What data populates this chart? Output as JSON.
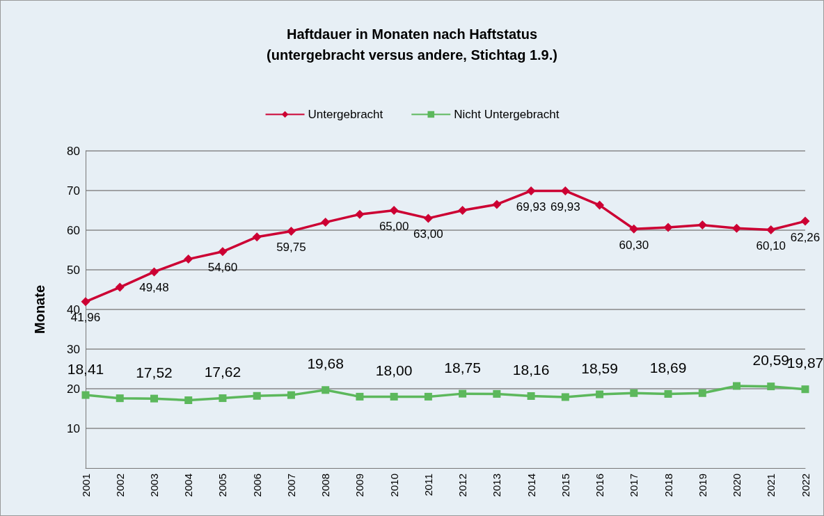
{
  "chart_data": {
    "type": "line",
    "title": "Haftdauer in Monaten nach Haftstatus\n(untergebracht versus andere, Stichtag 1.9.)",
    "ylabel": "Monate",
    "categories": [
      "2001",
      "2002",
      "2003",
      "2004",
      "2005",
      "2006",
      "2007",
      "2008",
      "2009",
      "2010",
      "2011",
      "2012",
      "2013",
      "2014",
      "2015",
      "2016",
      "2017",
      "2018",
      "2019",
      "2020",
      "2021",
      "2022"
    ],
    "series": [
      {
        "name": "Untergebracht",
        "color": "#cc0033",
        "marker": "diamond",
        "values": [
          41.96,
          45.6,
          49.48,
          52.7,
          54.6,
          58.3,
          59.75,
          62,
          64,
          65,
          63,
          65,
          66.5,
          69.93,
          69.93,
          66.3,
          60.3,
          60.7,
          61.3,
          60.5,
          60.1,
          62.26
        ],
        "value_labels": [
          "41,96",
          null,
          "49,48",
          null,
          "54,60",
          null,
          "59,75",
          null,
          null,
          "65,00",
          "63,00",
          null,
          null,
          "69,93",
          "69,93",
          null,
          "60,30",
          null,
          null,
          null,
          "60,10",
          "62,26"
        ]
      },
      {
        "name": "Nicht Untergebracht",
        "color": "#5cb85c",
        "marker": "square",
        "values": [
          18.41,
          17.6,
          17.52,
          17.1,
          17.62,
          18.2,
          18.4,
          19.68,
          18,
          18,
          18,
          18.75,
          18.7,
          18.16,
          17.9,
          18.59,
          18.9,
          18.69,
          18.9,
          20.7,
          20.59,
          19.87
        ],
        "value_labels": [
          "18,41",
          null,
          "17,52",
          null,
          "17,62",
          null,
          null,
          "19,68",
          null,
          "18,00",
          null,
          "18,75",
          null,
          "18,16",
          null,
          "18,59",
          null,
          "18,69",
          null,
          null,
          "20,59",
          "19,87"
        ]
      }
    ],
    "ylim": [
      0,
      80
    ],
    "yticks": [
      10,
      20,
      30,
      40,
      50,
      60,
      70,
      80
    ],
    "grid": "y",
    "legend": "top",
    "line_style": "solid"
  }
}
